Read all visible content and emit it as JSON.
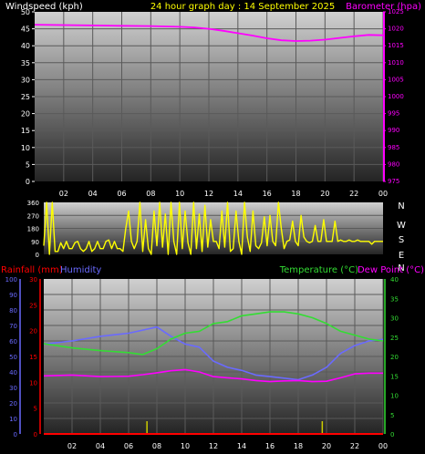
{
  "header": {
    "windspeed_label": "Windspeed (kph)",
    "title": "24 hour graph day : 14 September 2025",
    "barometer_label": "Barometer (hpa)"
  },
  "colors": {
    "background": "#000000",
    "plot_top": "#d0d0d0",
    "plot_bottom": "#242424",
    "grid": "#5a5a5a",
    "text": "#ffffff",
    "header_title": "#ffff00",
    "barometer": "#ff00ff",
    "wind_direction": "#ffff00",
    "rainfall": "#ff0000",
    "humidity": "#6a6aff",
    "temperature": "#33dd33",
    "dew_point": "#ff00ff",
    "rain_ticks": "#cccc00"
  },
  "lower_labels": {
    "rainfall": "Rainfall (mm)",
    "humidity": "Humidity",
    "temperature": "Temperature (°C)",
    "dew_point": "Dew Point (°C)"
  },
  "compass": [
    "N",
    "W",
    "S",
    "E",
    "N"
  ],
  "time_ticks": [
    "02",
    "04",
    "06",
    "08",
    "10",
    "12",
    "14",
    "16",
    "18",
    "20",
    "22",
    "00"
  ],
  "chart_data": [
    {
      "type": "line",
      "x": [
        0,
        2,
        4,
        6,
        8,
        10,
        11,
        12,
        13,
        14,
        15,
        16,
        17,
        18,
        19,
        20,
        21,
        22,
        23,
        24
      ],
      "series": [
        {
          "name": "Barometer (hpa)",
          "values": [
            1021.2,
            1021.1,
            1021.0,
            1020.9,
            1020.8,
            1020.6,
            1020.4,
            1020.0,
            1019.4,
            1018.7,
            1018.0,
            1017.2,
            1016.6,
            1016.4,
            1016.5,
            1016.8,
            1017.3,
            1017.8,
            1018.2,
            1018.1
          ]
        }
      ],
      "left_axis": {
        "label": "Windspeed (kph)",
        "ylim": [
          0,
          50
        ],
        "ticks": [
          0,
          5,
          10,
          15,
          20,
          25,
          30,
          35,
          40,
          45,
          50
        ]
      },
      "right_axis": {
        "label": "Barometer (hpa)",
        "ylim": [
          975,
          1025
        ],
        "ticks": [
          975,
          980,
          985,
          990,
          995,
          1000,
          1005,
          1010,
          1015,
          1020,
          1025
        ]
      },
      "xlim": [
        0,
        24
      ],
      "xticks": [
        "02",
        "04",
        "06",
        "08",
        "10",
        "12",
        "14",
        "16",
        "18",
        "20",
        "22",
        "00"
      ],
      "grid": true
    },
    {
      "type": "line",
      "series": [
        {
          "name": "Wind Direction",
          "x": [
            0.0,
            0.2,
            0.4,
            0.6,
            0.8,
            1.0,
            1.2,
            1.4,
            1.6,
            1.8,
            2.0,
            2.2,
            2.4,
            2.6,
            2.8,
            3.0,
            3.2,
            3.4,
            3.6,
            3.8,
            4.0,
            4.2,
            4.4,
            4.6,
            4.8,
            5.0,
            5.2,
            5.4,
            5.6,
            5.8,
            6.0,
            6.2,
            6.4,
            6.6,
            6.8,
            7.0,
            7.2,
            7.4,
            7.6,
            7.8,
            8.0,
            8.2,
            8.4,
            8.6,
            8.8,
            9.0,
            9.2,
            9.4,
            9.6,
            9.8,
            10.0,
            10.2,
            10.4,
            10.6,
            10.8,
            11.0,
            11.2,
            11.4,
            11.6,
            11.8,
            12.0,
            12.2,
            12.4,
            12.6,
            12.8,
            13.0,
            13.2,
            13.4,
            13.6,
            13.8,
            14.0,
            14.2,
            14.4,
            14.6,
            14.8,
            15.0,
            15.2,
            15.4,
            15.6,
            15.8,
            16.0,
            16.2,
            16.4,
            16.6,
            16.8,
            17.0,
            17.2,
            17.4,
            17.6,
            17.8,
            18.0,
            18.2,
            18.4,
            18.6,
            18.8,
            19.0,
            19.2,
            19.4,
            19.6,
            19.8,
            20.0,
            20.2,
            20.4,
            20.6,
            20.8,
            21.0,
            21.2,
            21.4,
            21.6,
            21.8,
            22.0,
            22.2,
            22.4,
            22.6,
            22.8,
            23.0,
            23.2,
            23.4,
            23.6,
            23.8,
            24.0
          ],
          "values": [
            60,
            360,
            0,
            360,
            20,
            20,
            80,
            40,
            90,
            40,
            40,
            80,
            90,
            40,
            20,
            40,
            90,
            20,
            40,
            90,
            40,
            40,
            90,
            100,
            40,
            90,
            40,
            40,
            20,
            180,
            300,
            90,
            40,
            90,
            360,
            20,
            240,
            40,
            0,
            300,
            60,
            360,
            50,
            280,
            0,
            360,
            90,
            0,
            360,
            40,
            300,
            80,
            0,
            360,
            40,
            280,
            20,
            340,
            50,
            240,
            90,
            90,
            40,
            300,
            50,
            360,
            20,
            40,
            300,
            90,
            0,
            360,
            120,
            20,
            300,
            60,
            40,
            80,
            260,
            60,
            270,
            90,
            60,
            360,
            180,
            40,
            90,
            100,
            230,
            90,
            60,
            270,
            120,
            90,
            80,
            90,
            200,
            90,
            90,
            240,
            90,
            90,
            90,
            230,
            90,
            100,
            90,
            90,
            100,
            90,
            90,
            100,
            90,
            90,
            90,
            90,
            70,
            90,
            90,
            90,
            90
          ]
        }
      ],
      "ylim": [
        0,
        360
      ],
      "yticks": [
        0,
        90,
        180,
        270,
        360
      ],
      "xlim": [
        0,
        24
      ],
      "grid": true
    },
    {
      "type": "line",
      "x": [
        0,
        2,
        4,
        6,
        7,
        8,
        9,
        10,
        11,
        12,
        13,
        14,
        15,
        16,
        17,
        18,
        19,
        20,
        21,
        22,
        23,
        24
      ],
      "series": [
        {
          "name": "Humidity",
          "axis": "left",
          "values": [
            58,
            60,
            63,
            65,
            67,
            69,
            63,
            58,
            56,
            47,
            43,
            41,
            38,
            37,
            36,
            35,
            38,
            43,
            52,
            57,
            60,
            61
          ]
        },
        {
          "name": "Temperature (°C)",
          "axis": "right",
          "values": [
            23.3,
            22.2,
            21.5,
            21.0,
            20.5,
            22.0,
            24.5,
            26.0,
            26.5,
            28.5,
            29.0,
            30.5,
            31.0,
            31.5,
            31.5,
            31.0,
            30.0,
            28.5,
            26.5,
            25.5,
            24.5,
            24.0
          ]
        },
        {
          "name": "Dew Point (°C)",
          "axis": "right",
          "values": [
            15.0,
            15.2,
            14.8,
            14.9,
            15.3,
            15.8,
            16.3,
            16.6,
            16.0,
            14.8,
            14.5,
            14.2,
            13.8,
            13.5,
            13.7,
            13.8,
            13.5,
            13.6,
            14.5,
            15.5,
            15.7,
            15.7
          ]
        },
        {
          "name": "Rainfall (mm)",
          "axis": "rain",
          "values": [
            0,
            0,
            0,
            0,
            0,
            0,
            0,
            0,
            0,
            0,
            0,
            0,
            0,
            0,
            0,
            0,
            0,
            0,
            0,
            0,
            0,
            0
          ]
        }
      ],
      "humidity_axis": {
        "ylim": [
          0,
          100
        ],
        "ticks": [
          0,
          10,
          20,
          30,
          40,
          50,
          60,
          70,
          80,
          90,
          100
        ]
      },
      "rainfall_axis": {
        "ylim": [
          0,
          30
        ],
        "ticks": [
          0,
          5,
          10,
          15,
          20,
          25,
          30
        ]
      },
      "temperature_axis": {
        "ylim": [
          0,
          40
        ],
        "ticks": [
          0,
          5,
          10,
          15,
          20,
          25,
          30,
          35,
          40
        ]
      },
      "xlim": [
        0,
        24
      ],
      "xticks": [
        "02",
        "04",
        "06",
        "08",
        "10",
        "12",
        "14",
        "16",
        "18",
        "20",
        "22",
        "00"
      ],
      "grid": true
    }
  ]
}
